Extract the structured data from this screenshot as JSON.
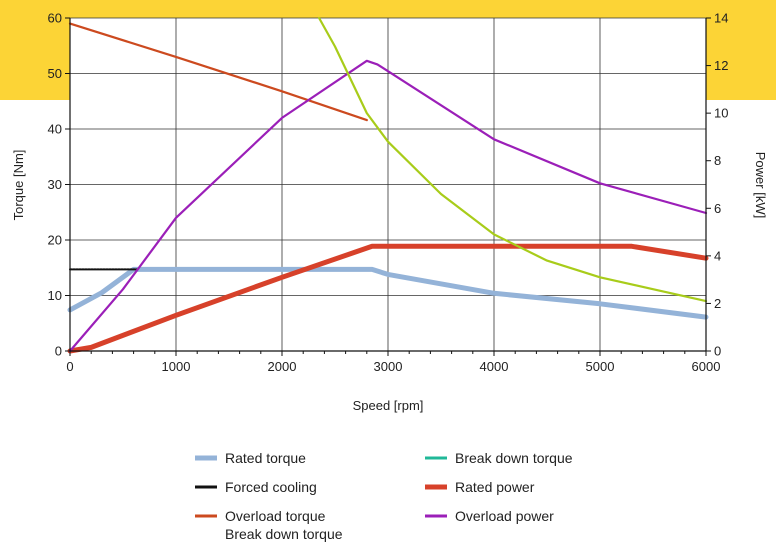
{
  "colors": {
    "accent_band": "#fcd436",
    "rated_torque": "#94b3d8",
    "forced_cooling": "#111111",
    "overload_torque": "#cc4a1f",
    "break_down_torque": "#20b898",
    "rated_power": "#d7412a",
    "overload_power": "#9b1fb8",
    "break_down_torque_power": "#a8cc1a"
  },
  "chart_data": {
    "type": "line",
    "xlabel": "Speed [rpm]",
    "ylabel_left": "Torque [Nm]",
    "ylabel_right": "Power [kW]",
    "xlim": [
      0,
      6000
    ],
    "ylim_left": [
      0,
      60
    ],
    "ylim_right": [
      0,
      14
    ],
    "x_ticks": [
      "0",
      "1000",
      "2000",
      "3000",
      "4000",
      "5000",
      "6000"
    ],
    "y_left_ticks": [
      "0",
      "10",
      "20",
      "30",
      "40",
      "50",
      "60"
    ],
    "y_right_ticks": [
      "0",
      "2",
      "4",
      "6",
      "8",
      "10",
      "12",
      "14"
    ],
    "grid": true,
    "legend_position": "bottom",
    "series": [
      {
        "name": "Rated torque",
        "axis": "left",
        "style": "thick",
        "color_key": "rated_torque",
        "points": [
          [
            0,
            7.4
          ],
          [
            300,
            10.5
          ],
          [
            600,
            14.7
          ],
          [
            2850,
            14.7
          ],
          [
            3000,
            13.8
          ],
          [
            4000,
            10.4
          ],
          [
            5000,
            8.5
          ],
          [
            6000,
            6.1
          ]
        ]
      },
      {
        "name": "Forced cooling",
        "axis": "left",
        "style": "thin",
        "color_key": "forced_cooling",
        "points": [
          [
            0,
            14.7
          ],
          [
            630,
            14.7
          ]
        ]
      },
      {
        "name": "Overload torque",
        "axis": "left",
        "style": "thin",
        "color_key": "overload_torque",
        "points": [
          [
            0,
            59
          ],
          [
            1000,
            53
          ],
          [
            2000,
            46.8
          ],
          [
            2800,
            41.6
          ]
        ]
      },
      {
        "name": "Break down torque",
        "axis": "left",
        "style": "thin",
        "color_key": "break_down_torque",
        "points": []
      },
      {
        "name": "Rated power",
        "axis": "right",
        "style": "thick",
        "color_key": "rated_power",
        "points": [
          [
            0,
            0
          ],
          [
            200,
            0.15
          ],
          [
            1000,
            1.5
          ],
          [
            2000,
            3.1
          ],
          [
            2850,
            4.4
          ],
          [
            5300,
            4.4
          ],
          [
            6000,
            3.9
          ]
        ]
      },
      {
        "name": "Overload power",
        "axis": "right",
        "style": "thin",
        "color_key": "overload_power",
        "points": [
          [
            0,
            0
          ],
          [
            500,
            2.6
          ],
          [
            1000,
            5.6
          ],
          [
            2000,
            9.8
          ],
          [
            2800,
            12.2
          ],
          [
            2900,
            12.05
          ],
          [
            4000,
            8.9
          ],
          [
            5000,
            7.05
          ],
          [
            6000,
            5.8
          ]
        ]
      },
      {
        "name": "Break down torque",
        "axis": "right",
        "style": "thin",
        "color_key": "break_down_torque_power",
        "points": [
          [
            2350,
            14
          ],
          [
            2500,
            12.8
          ],
          [
            2800,
            10
          ],
          [
            3000,
            8.8
          ],
          [
            3500,
            6.6
          ],
          [
            4000,
            4.9
          ],
          [
            4500,
            3.8
          ],
          [
            5000,
            3.1
          ],
          [
            5500,
            2.6
          ],
          [
            6000,
            2.1
          ]
        ]
      }
    ],
    "legend": [
      {
        "label": "Rated torque",
        "color_key": "rated_torque",
        "thick": true
      },
      {
        "label": "Break down torque",
        "color_key": "break_down_torque",
        "thick": false
      },
      {
        "label": "Forced cooling",
        "color_key": "forced_cooling",
        "thick": false
      },
      {
        "label": "Rated power",
        "color_key": "rated_power",
        "thick": true
      },
      {
        "label": "Overload torque",
        "color_key": "overload_torque",
        "thick": false
      },
      {
        "label": "Overload power",
        "color_key": "overload_power",
        "thick": false
      },
      {
        "label": "Break down torque",
        "color_key": "break_down_torque_power",
        "thick": false,
        "no_swatch": true
      }
    ]
  }
}
